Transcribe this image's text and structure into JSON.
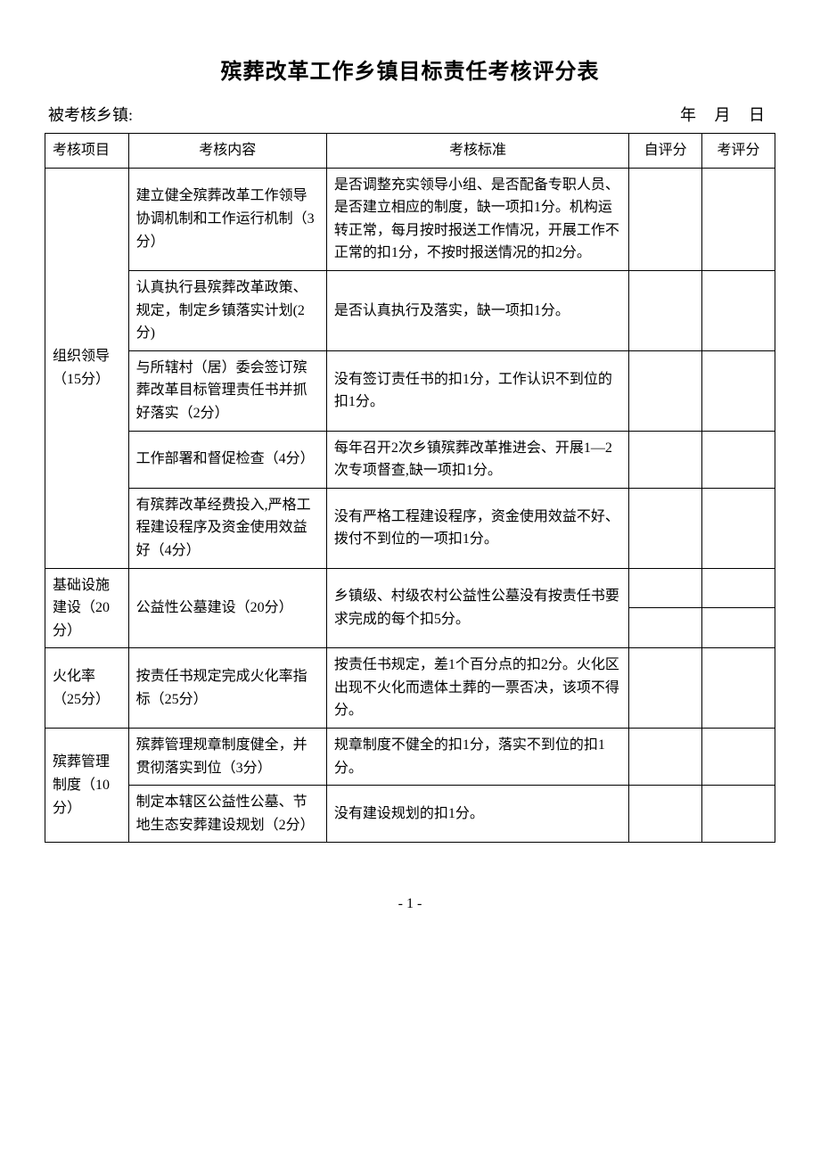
{
  "title": "殡葬改革工作乡镇目标责任考核评分表",
  "subject_label": "被考核乡镇:",
  "date_label": "年   月   日",
  "headers": {
    "category": "考核项目",
    "content": "考核内容",
    "standard": "考核标准",
    "self_score": "自评分",
    "eval_score": "考评分"
  },
  "rows": [
    {
      "category": "组织领导（15分）",
      "category_rowspan": 5,
      "content": "建立健全殡葬改革工作领导协调机制和工作运行机制（3分）",
      "standard": "是否调整充实领导小组、是否配备专职人员、是否建立相应的制度，缺一项扣1分。机构运转正常，每月按时报送工作情况，开展工作不正常的扣1分，不按时报送情况的扣2分。",
      "self": "",
      "eval": ""
    },
    {
      "content": "认真执行县殡葬改革政策、规定，制定乡镇落实计划(2分)",
      "standard": "是否认真执行及落实，缺一项扣1分。",
      "self": "",
      "eval": ""
    },
    {
      "content": "与所辖村（居）委会签订殡葬改革目标管理责任书并抓好落实（2分）",
      "standard": "没有签订责任书的扣1分，工作认识不到位的扣1分。",
      "self": "",
      "eval": ""
    },
    {
      "content": "工作部署和督促检查（4分）",
      "standard": "每年召开2次乡镇殡葬改革推进会、开展1—2次专项督查,缺一项扣1分。",
      "self": "",
      "eval": ""
    },
    {
      "content": "有殡葬改革经费投入,严格工程建设程序及资金使用效益好（4分）",
      "standard": "没有严格工程建设程序，资金使用效益不好、拨付不到位的一项扣1分。",
      "self": "",
      "eval": ""
    },
    {
      "category": "基础设施建设（20分）",
      "category_rowspan": 2,
      "content": "公益性公墓建设（20分）",
      "content_rowspan": 2,
      "standard": "乡镇级、村级农村公益性公墓没有按责任书要求完成的每个扣5分。",
      "standard_rowspan": 2,
      "self": "",
      "eval": ""
    },
    {
      "self": "",
      "eval": ""
    },
    {
      "category": "火化率（25分）",
      "category_rowspan": 1,
      "content": "按责任书规定完成火化率指标（25分）",
      "standard": "按责任书规定，差1个百分点的扣2分。火化区出现不火化而遗体土葬的一票否决，该项不得分。",
      "self": "",
      "eval": ""
    },
    {
      "category": "殡葬管理制度（10分）",
      "category_rowspan": 2,
      "content": "殡葬管理规章制度健全，并贯彻落实到位（3分）",
      "standard": "规章制度不健全的扣1分，落实不到位的扣1分。",
      "self": "",
      "eval": ""
    },
    {
      "content": "制定本辖区公益性公墓、节地生态安葬建设规划（2分）",
      "standard": "没有建设规划的扣1分。",
      "self": "",
      "eval": ""
    }
  ],
  "page_number": "- 1 -",
  "colors": {
    "text": "#000000",
    "background": "#ffffff",
    "border": "#000000"
  },
  "typography": {
    "title_fontsize": 24,
    "body_fontsize": 16,
    "header_fontsize": 18,
    "font_family": "SimSun"
  }
}
